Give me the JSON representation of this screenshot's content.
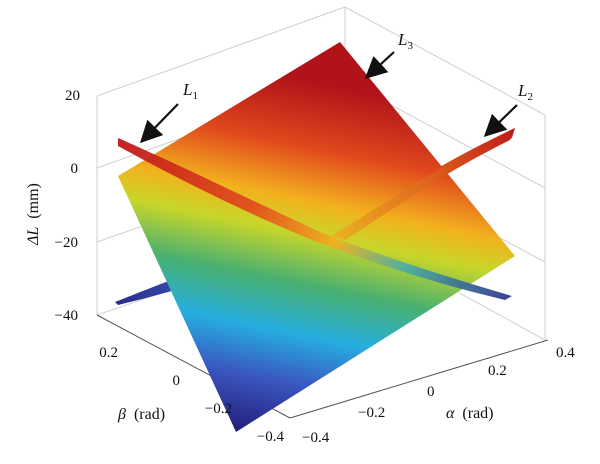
{
  "chart_data": {
    "type": "surface3d",
    "title": "",
    "zlabel": {
      "symbol": "ΔL",
      "unit": "(mm)"
    },
    "xlabel": {
      "symbol": "α",
      "unit": "(rad)"
    },
    "ylabel": {
      "symbol": "β",
      "unit": "(rad)"
    },
    "x_ticks": [
      "−0.4",
      "−0.2",
      "0",
      "0.2",
      "0.4"
    ],
    "y_ticks": [
      "−0.4",
      "−0.2",
      "0",
      "0.2"
    ],
    "z_ticks": [
      "20",
      "0",
      "−20",
      "−40"
    ],
    "xlim": [
      -0.4,
      0.4
    ],
    "ylim": [
      -0.4,
      0.4
    ],
    "zlim": [
      -40,
      20
    ],
    "grid": true,
    "series": [
      {
        "name": "L1",
        "label": "L",
        "sub": "1",
        "description_points": {
          "alpha": [
            -0.4,
            0.0,
            0.4
          ],
          "beta": [
            0.4,
            0.0,
            -0.4
          ],
          "dL": [
            2,
            -20,
            -27
          ]
        }
      },
      {
        "name": "L2",
        "label": "L",
        "sub": "2",
        "description_points": {
          "alpha": [
            -0.4,
            0.0,
            0.4
          ],
          "beta": [
            -0.4,
            0.0,
            0.4
          ],
          "dL": [
            -36,
            -20,
            3
          ]
        }
      },
      {
        "name": "L3",
        "label": "L",
        "sub": "3",
        "description_points": {
          "alpha": [
            -0.4,
            0.4,
            0.4,
            -0.4
          ],
          "beta": [
            -0.4,
            -0.4,
            0.4,
            0.4
          ],
          "dL": [
            -4,
            -44,
            19,
            -28
          ]
        }
      }
    ]
  }
}
